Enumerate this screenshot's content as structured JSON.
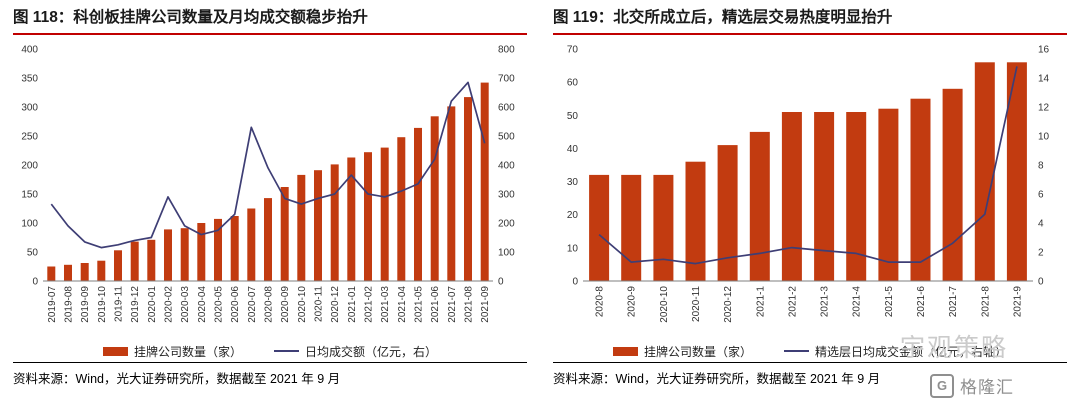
{
  "colors": {
    "bar": "#C23B10",
    "line": "#3E3E75",
    "title_rule": "#C00000",
    "axis": "#7F7F7F",
    "watermark": "#CBCBCB",
    "brand": "#8F8F8F"
  },
  "watermark": {
    "text": "宇观策略",
    "brand": "格隆汇",
    "brand_initial": "G"
  },
  "chart_data": [
    {
      "type": "bar",
      "title": "图 118：科创板挂牌公司数量及月均成交额稳步抬升",
      "source": "资料来源：Wind，光大证券研究所，数据截至 2021 年 9 月",
      "legend_position": "bottom",
      "grid": false,
      "categories": [
        "2019-07",
        "2019-08",
        "2019-09",
        "2019-10",
        "2019-11",
        "2019-12",
        "2020-01",
        "2020-02",
        "2020-03",
        "2020-04",
        "2020-05",
        "2020-06",
        "2020-07",
        "2020-08",
        "2020-09",
        "2020-10",
        "2020-11",
        "2020-12",
        "2021-01",
        "2021-02",
        "2021-03",
        "2021-04",
        "2021-05",
        "2021-06",
        "2021-07",
        "2021-08",
        "2021-09"
      ],
      "left_axis": {
        "label": "",
        "min": 0,
        "max": 400,
        "ticks": [
          0,
          50,
          100,
          150,
          200,
          250,
          300,
          350,
          400
        ]
      },
      "right_axis": {
        "label": "",
        "min": 0,
        "max": 800,
        "ticks": [
          0,
          100,
          200,
          300,
          400,
          500,
          600,
          700,
          800
        ]
      },
      "series": [
        {
          "name": "挂牌公司数量（家）",
          "kind": "bar",
          "axis": "left",
          "values": [
            25,
            28,
            31,
            35,
            53,
            68,
            71,
            89,
            91,
            100,
            107,
            112,
            125,
            143,
            162,
            183,
            191,
            201,
            213,
            222,
            230,
            248,
            264,
            284,
            301,
            317,
            342
          ]
        },
        {
          "name": "日均成交额（亿元，右）",
          "kind": "line",
          "axis": "right",
          "values": [
            265,
            190,
            135,
            115,
            125,
            140,
            150,
            290,
            190,
            160,
            175,
            230,
            530,
            390,
            285,
            265,
            285,
            300,
            365,
            300,
            290,
            310,
            335,
            420,
            620,
            685,
            475
          ]
        }
      ]
    },
    {
      "type": "bar",
      "title": "图 119：北交所成立后，精选层交易热度明显抬升",
      "source": "资料来源：Wind，光大证券研究所，数据截至 2021 年 9 月",
      "legend_position": "bottom",
      "grid": false,
      "categories": [
        "2020-8",
        "2020-9",
        "2020-10",
        "2020-11",
        "2020-12",
        "2021-1",
        "2021-2",
        "2021-3",
        "2021-4",
        "2021-5",
        "2021-6",
        "2021-7",
        "2021-8",
        "2021-9"
      ],
      "left_axis": {
        "label": "",
        "min": 0,
        "max": 70,
        "ticks": [
          0,
          10,
          20,
          30,
          40,
          50,
          60,
          70
        ]
      },
      "right_axis": {
        "label": "",
        "min": 0,
        "max": 16,
        "ticks": [
          0,
          2,
          4,
          6,
          8,
          10,
          12,
          14,
          16
        ]
      },
      "series": [
        {
          "name": "挂牌公司数量（家）",
          "kind": "bar",
          "axis": "left",
          "values": [
            32,
            32,
            32,
            36,
            41,
            45,
            51,
            51,
            51,
            52,
            55,
            58,
            66,
            66
          ]
        },
        {
          "name": "精选层日均成交金额（亿元，右轴）",
          "kind": "line",
          "axis": "right",
          "values": [
            3.2,
            1.3,
            1.5,
            1.2,
            1.6,
            1.9,
            2.3,
            2.1,
            1.9,
            1.3,
            1.3,
            2.6,
            4.6,
            14.8
          ]
        }
      ]
    }
  ]
}
